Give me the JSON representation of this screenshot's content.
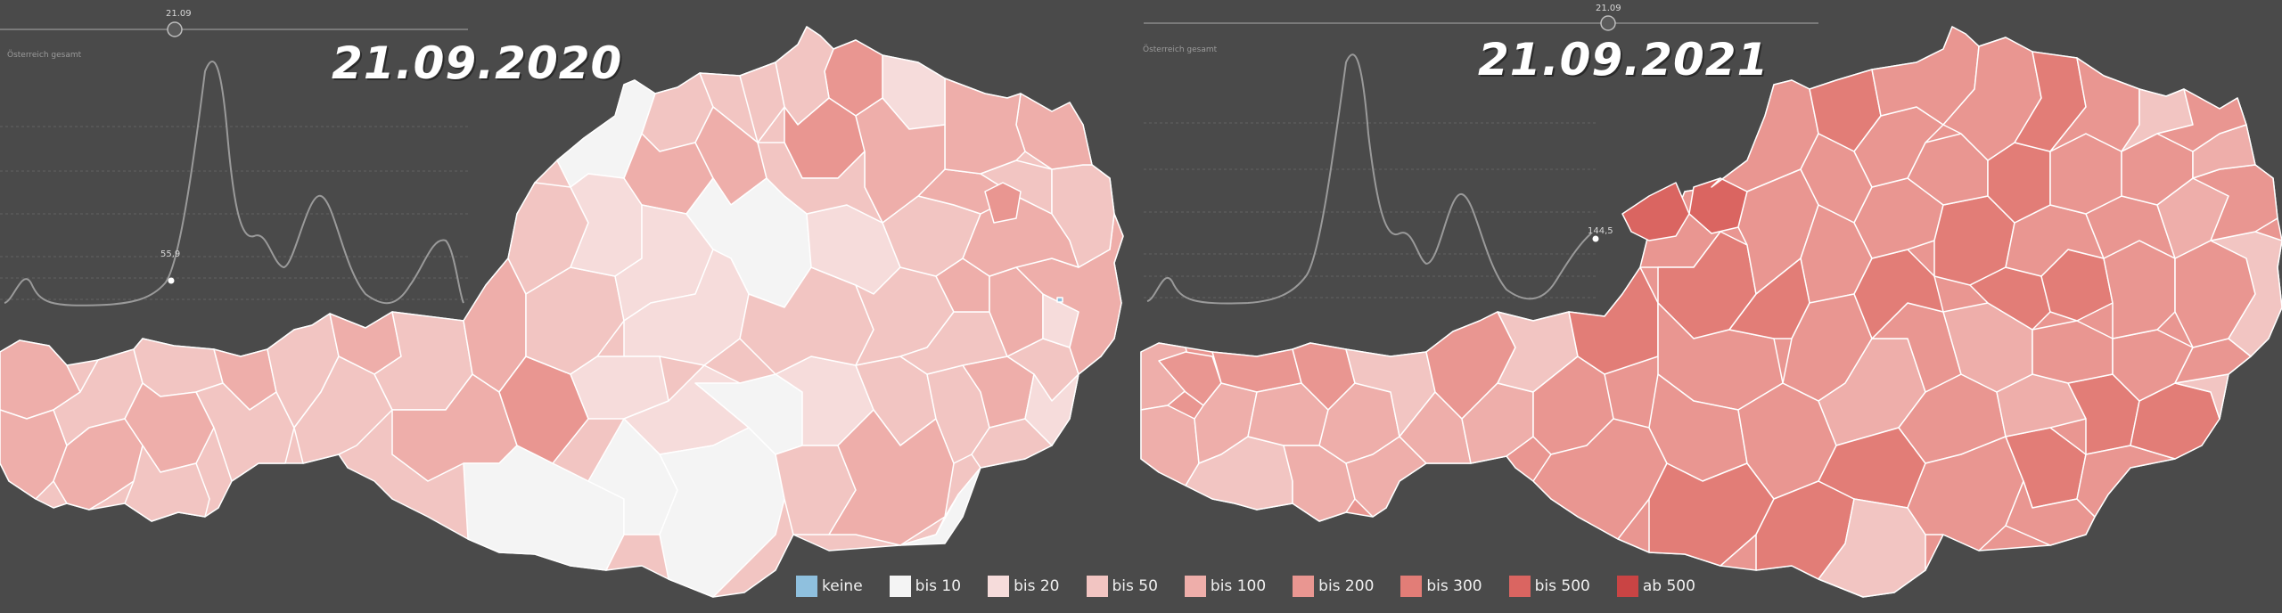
{
  "panels": [
    {
      "id": "left",
      "title": "21.09.2020",
      "slider_value": "21.09",
      "chart_label": "Österreich gesamt",
      "marker_value": "55,9"
    },
    {
      "id": "right",
      "title": "21.09.2021",
      "slider_value": "21.09",
      "chart_label": "Österreich gesamt",
      "marker_value": "144,5"
    }
  ],
  "legend": [
    {
      "label": "keine",
      "color": "#8fc0de"
    },
    {
      "label": "bis 10",
      "color": "#f4f4f4"
    },
    {
      "label": "bis 20",
      "color": "#f6dcdb"
    },
    {
      "label": "bis 50",
      "color": "#f2c5c2"
    },
    {
      "label": "bis 100",
      "color": "#eeaeaa"
    },
    {
      "label": "bis 200",
      "color": "#e99691"
    },
    {
      "label": "bis 300",
      "color": "#e27d77"
    },
    {
      "label": "bis 500",
      "color": "#da6561"
    },
    {
      "label": "ab 500",
      "color": "#c94444"
    }
  ],
  "map_palette": {
    "bis10": "#f4f4f4",
    "bis20": "#f6dcdb",
    "bis50": "#f2c5c2",
    "bis100": "#eeaeaa",
    "bis200": "#e99691",
    "bis300": "#e27d77",
    "bis500": "#da6561",
    "border": "#ffffff",
    "background": "#4a4a4a"
  }
}
